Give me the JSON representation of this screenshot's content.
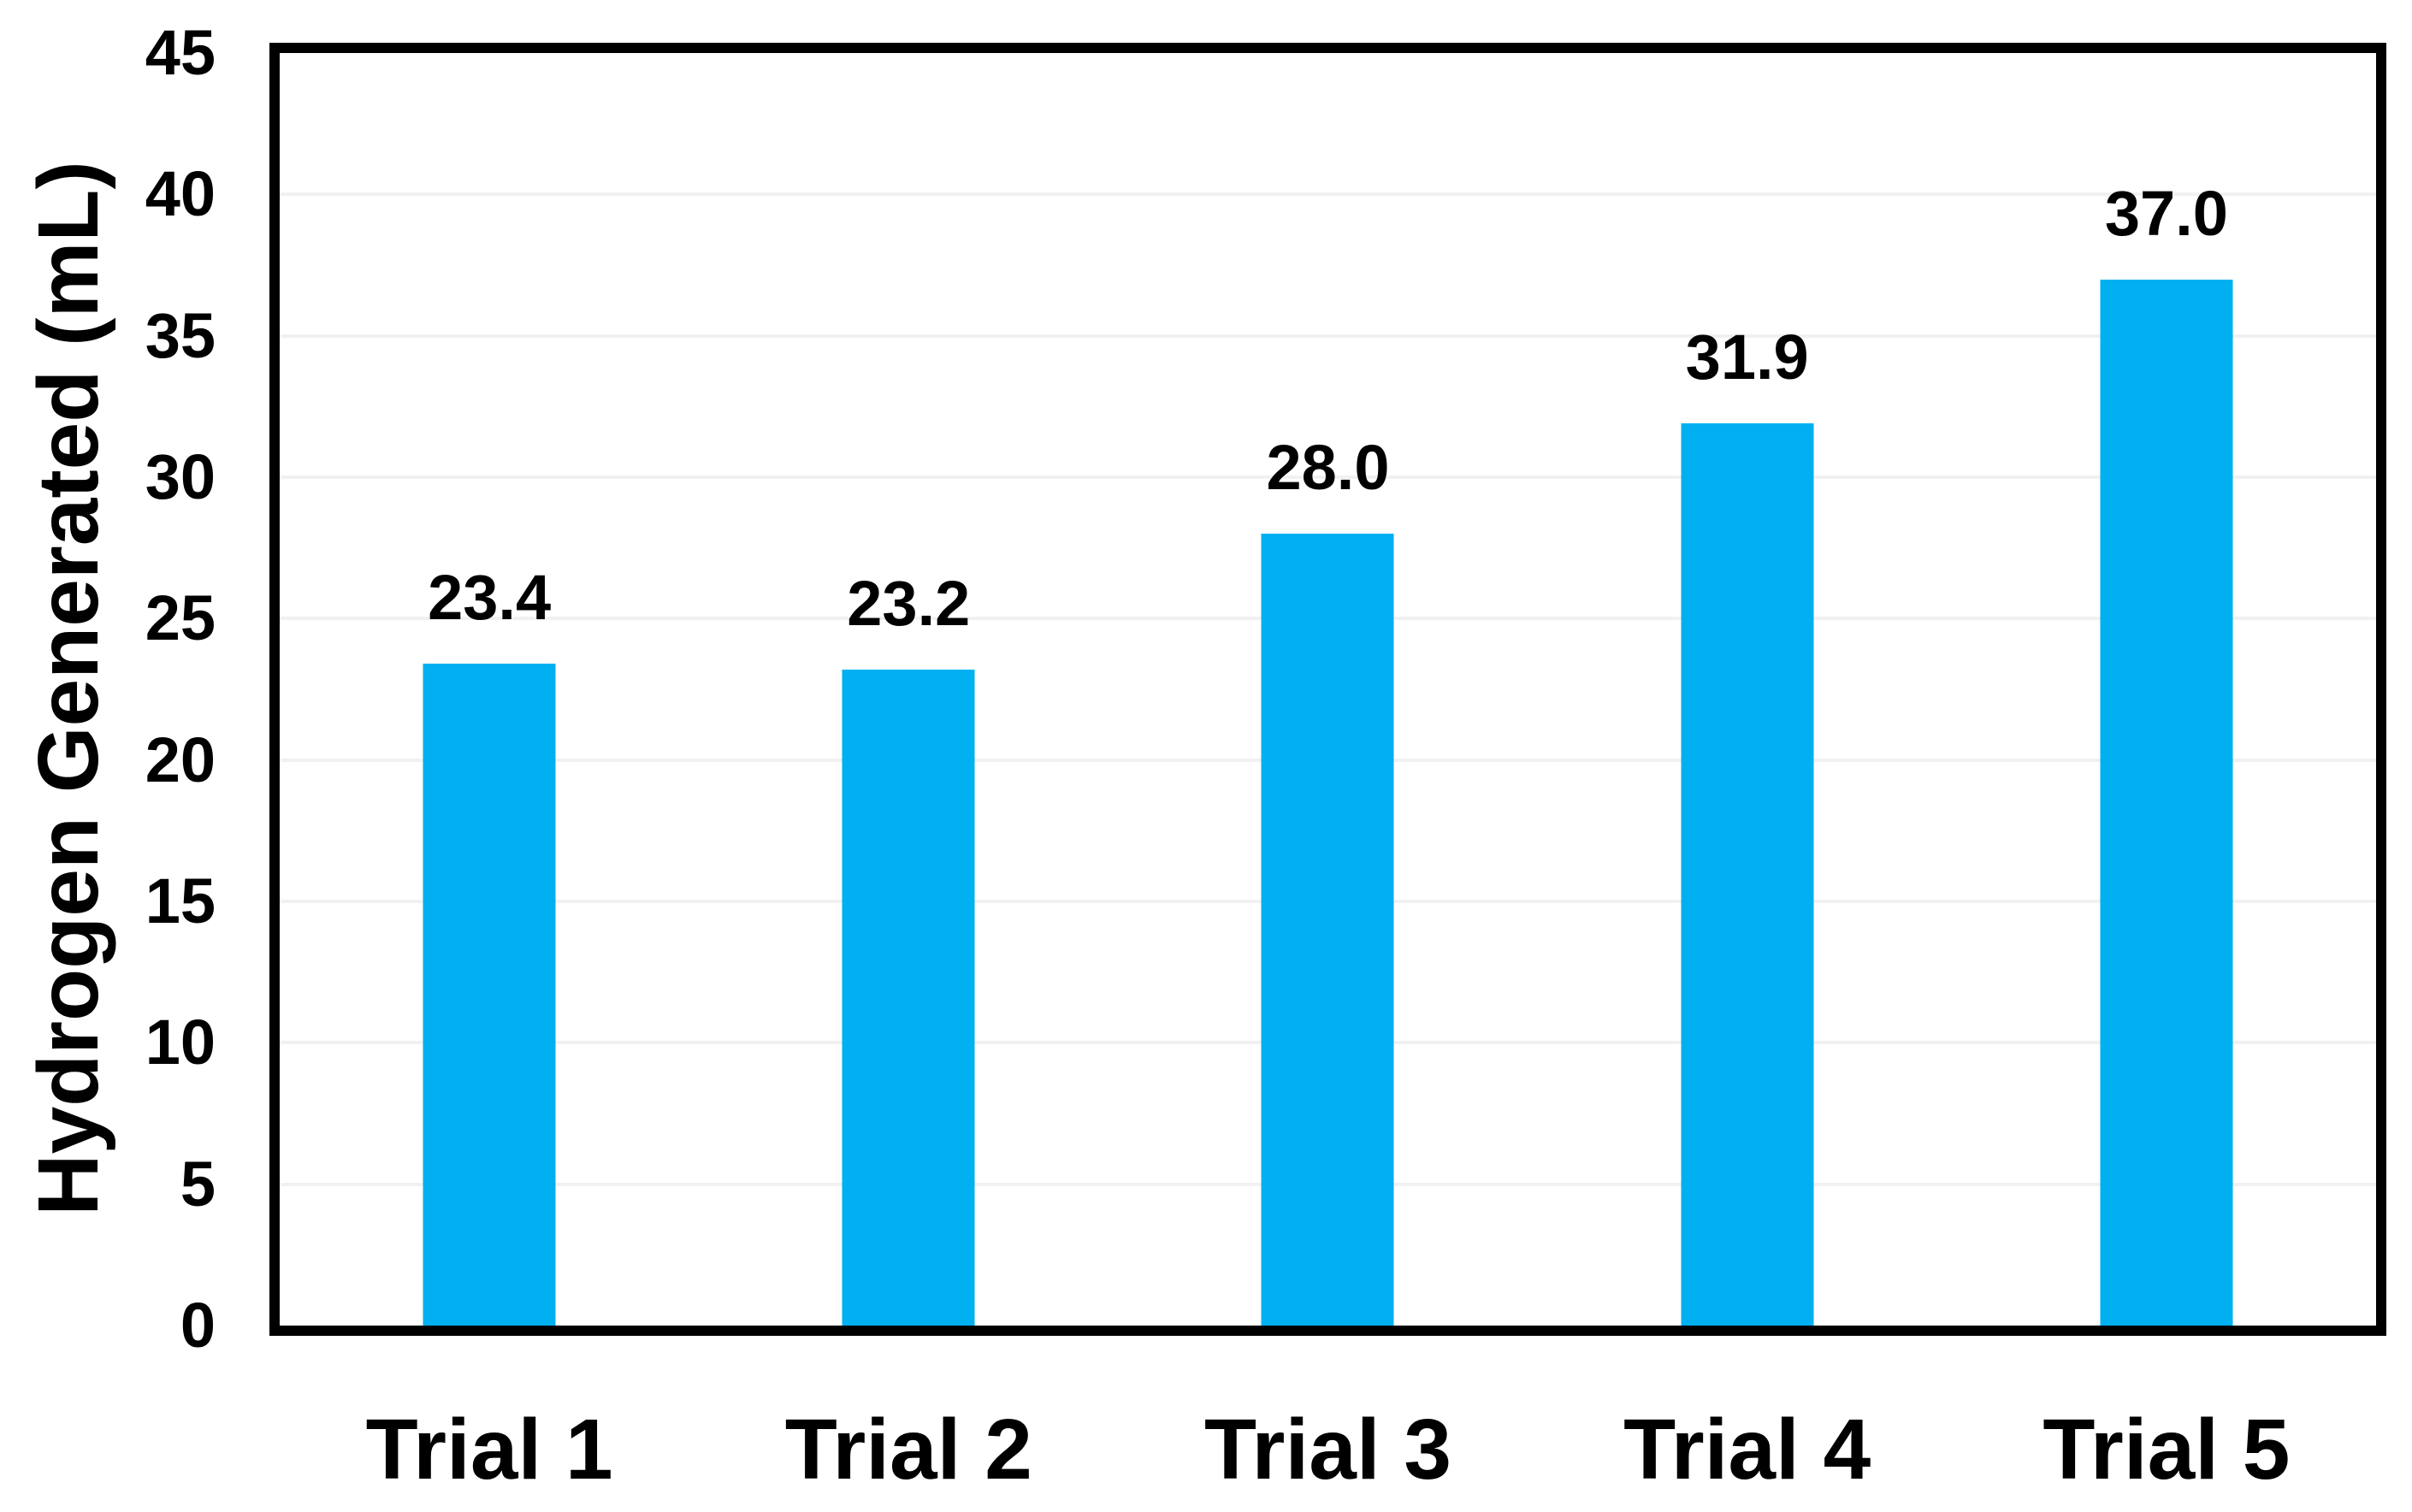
{
  "chart_data": {
    "type": "bar",
    "categories": [
      "Trial 1",
      "Trial 2",
      "Trial 3",
      "Trial 4",
      "Trial 5"
    ],
    "values": [
      23.4,
      23.2,
      28.0,
      31.9,
      37.0
    ],
    "data_labels": [
      "23.4",
      "23.2",
      "28.0",
      "31.9",
      "37.0"
    ],
    "title": "",
    "xlabel": "",
    "ylabel": "Hydrogen Generated (mL)",
    "ylim": [
      0,
      45
    ],
    "yticks": [
      0,
      5,
      10,
      15,
      20,
      25,
      30,
      35,
      40,
      45
    ],
    "grid": true,
    "legend": false,
    "colors": {
      "bar": "#00B0F0",
      "gridline": "#F1F1F1",
      "axis_frame": "#000000",
      "text": "#000000",
      "background": "#FFFFFF"
    }
  }
}
